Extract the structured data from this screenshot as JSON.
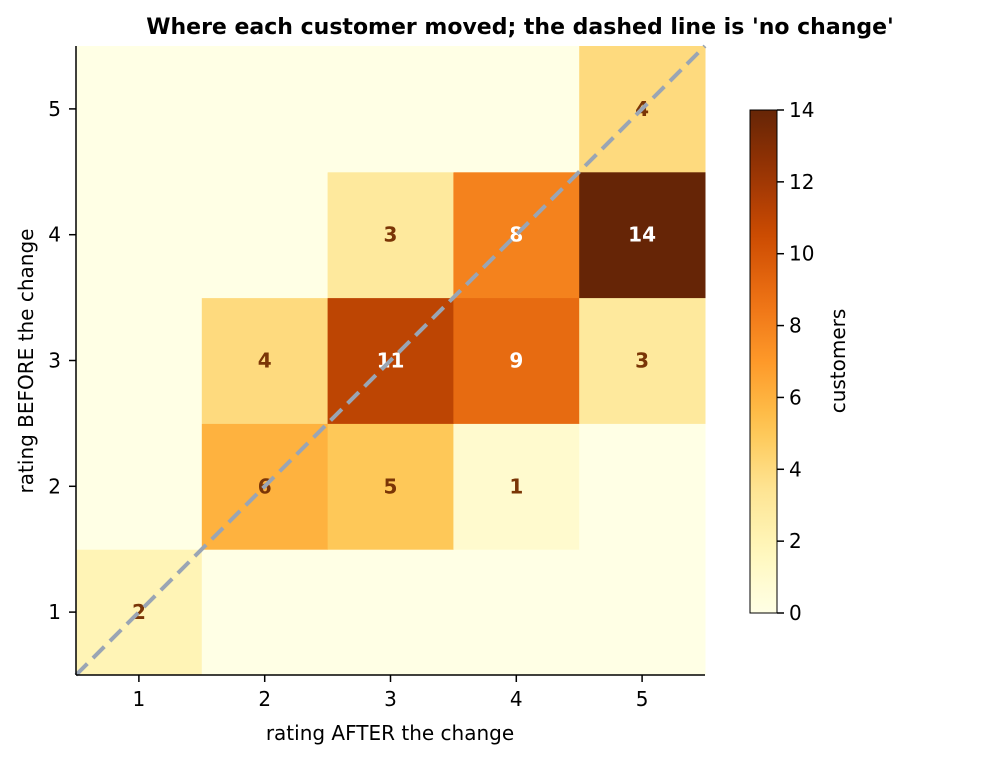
{
  "chart_data": {
    "type": "heatmap",
    "title": "Where each customer moved; the dashed line is 'no change'",
    "xlabel": "rating AFTER the change",
    "ylabel": "rating BEFORE the change",
    "x_categories": [
      "1",
      "2",
      "3",
      "4",
      "5"
    ],
    "y_categories": [
      "1",
      "2",
      "3",
      "4",
      "5"
    ],
    "values": [
      [
        2,
        0,
        0,
        0,
        0
      ],
      [
        0,
        6,
        5,
        1,
        0
      ],
      [
        0,
        4,
        11,
        9,
        3
      ],
      [
        0,
        0,
        3,
        8,
        14
      ],
      [
        0,
        0,
        0,
        0,
        4
      ]
    ],
    "values_note_rows": "row index = rating BEFORE (1..5), column index = rating AFTER (1..5)",
    "show_zero_labels": false,
    "diagonal": {
      "style": "dashed",
      "color": "#9aa5b4"
    },
    "colorbar": {
      "label": "customers",
      "min": 0,
      "max": 14,
      "ticks": [
        "0",
        "2",
        "4",
        "6",
        "8",
        "10",
        "12",
        "14"
      ],
      "colormap": "YlOrBr"
    },
    "annotation_colors": {
      "dark_text": "#7a3506",
      "light_text": "#ffffff",
      "threshold": 7
    }
  }
}
